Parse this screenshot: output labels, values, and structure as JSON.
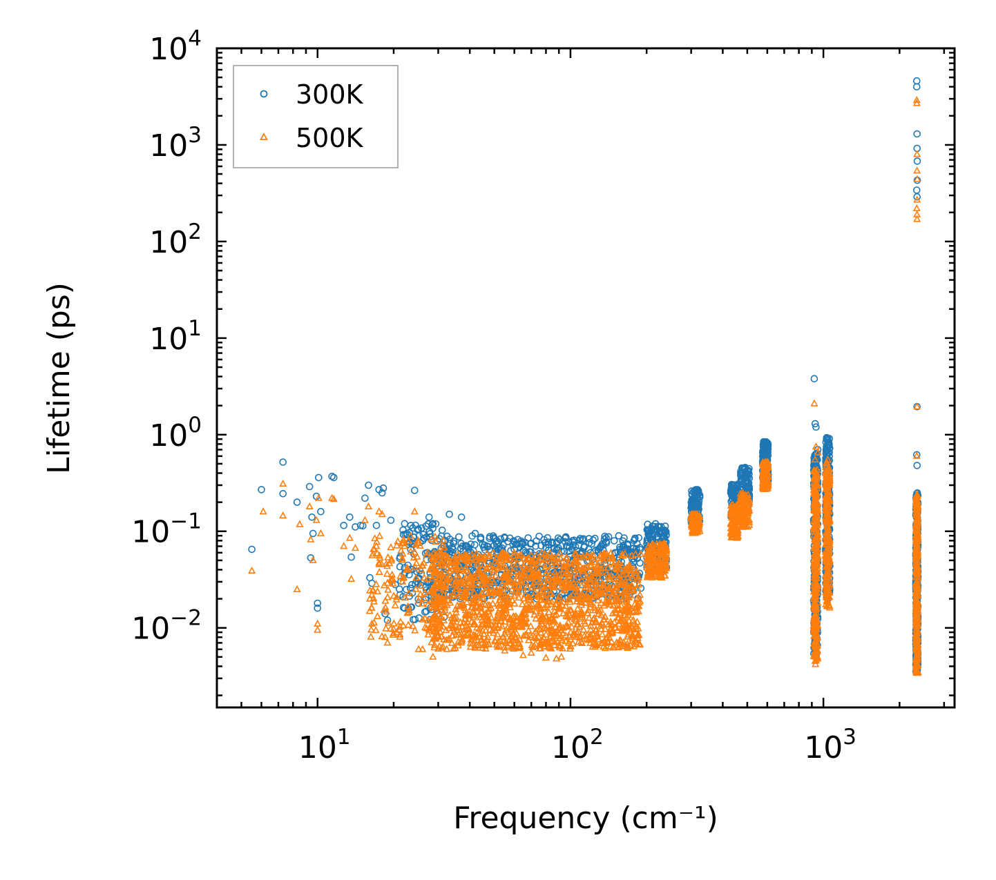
{
  "chart_data": {
    "type": "scatter",
    "title": "",
    "xlabel": "Frequency (cm⁻¹)",
    "ylabel": "Lifetime (ps)",
    "xscale": "log",
    "yscale": "log",
    "xlim": [
      4,
      3300
    ],
    "ylim": [
      0.0015,
      10000
    ],
    "x_ticks": [
      {
        "value": 10,
        "label": "10",
        "exp": "1"
      },
      {
        "value": 100,
        "label": "10",
        "exp": "2"
      },
      {
        "value": 1000,
        "label": "10",
        "exp": "3"
      }
    ],
    "y_ticks": [
      {
        "value": 0.01,
        "label": "10",
        "exp": "−2"
      },
      {
        "value": 0.1,
        "label": "10",
        "exp": "−1"
      },
      {
        "value": 1,
        "label": "10",
        "exp": "0"
      },
      {
        "value": 10,
        "label": "10",
        "exp": "1"
      },
      {
        "value": 100,
        "label": "10",
        "exp": "2"
      },
      {
        "value": 1000,
        "label": "10",
        "exp": "3"
      },
      {
        "value": 10000,
        "label": "10",
        "exp": "4"
      }
    ],
    "grid": false,
    "legend_position": "top-left",
    "colors": {
      "300K": "#1f77b4",
      "500K": "#ff7f0e"
    },
    "series": [
      {
        "name": "300K",
        "marker": "circle",
        "color": "#1f77b4",
        "points": [
          [
            5.5,
            0.065
          ],
          [
            6.0,
            0.27
          ],
          [
            7.3,
            0.52
          ],
          [
            7.3,
            0.245
          ],
          [
            8.3,
            0.2
          ],
          [
            9.3,
            0.29
          ],
          [
            9.5,
            0.14
          ],
          [
            9.4,
            0.053
          ],
          [
            9.6,
            0.095
          ],
          [
            9.9,
            0.23
          ],
          [
            10.1,
            0.36
          ],
          [
            10.3,
            0.16
          ],
          [
            10.0,
            0.018
          ],
          [
            10.0,
            0.016
          ],
          [
            11.4,
            0.37
          ],
          [
            11.6,
            0.36
          ],
          [
            12.7,
            0.115
          ],
          [
            13.4,
            0.14
          ],
          [
            13.6,
            0.054
          ],
          [
            14.1,
            0.111
          ],
          [
            14.8,
            0.115
          ],
          [
            15.1,
            0.114
          ],
          [
            15.4,
            0.22
          ],
          [
            15.9,
            0.3
          ],
          [
            16.1,
            0.033
          ],
          [
            16.4,
            0.029
          ],
          [
            17.1,
            0.115
          ],
          [
            17.5,
            0.27
          ],
          [
            18.0,
            0.25
          ],
          [
            18.2,
            0.28
          ],
          [
            18.5,
            0.014
          ],
          [
            18.9,
            0.012
          ],
          [
            19.5,
            0.13
          ],
          [
            20.3,
            0.028
          ],
          [
            21.2,
            0.022
          ],
          [
            22.1,
            0.12
          ],
          [
            23.4,
            0.115
          ],
          [
            24.2,
            0.265
          ],
          [
            25.1,
            0.018
          ],
          [
            27.6,
            0.14
          ],
          [
            28.6,
            0.12
          ],
          [
            30.0,
            0.014
          ],
          [
            33.2,
            0.15
          ],
          [
            37.1,
            0.14
          ],
          [
            42.0,
            0.095
          ],
          [
            48.0,
            0.088
          ],
          [
            55.0,
            0.085
          ],
          [
            62.0,
            0.082
          ],
          [
            70.0,
            0.075
          ],
          [
            80.0,
            0.068
          ],
          [
            92.0,
            0.062
          ],
          [
            105.0,
            0.058
          ],
          [
            120.0,
            0.06
          ],
          [
            135.0,
            0.072
          ],
          [
            150.0,
            0.06
          ],
          [
            170.0,
            0.058
          ],
          [
            185.0,
            0.06
          ],
          [
            920,
            3.8
          ],
          [
            928,
            1.3
          ],
          [
            935,
            1.2
          ],
          [
            950,
            0.7
          ],
          [
            1030,
            0.93
          ],
          [
            1040,
            0.88
          ],
          [
            1055,
            0.6
          ],
          [
            2340,
            4600
          ],
          [
            2340,
            4000
          ],
          [
            2345,
            1300
          ],
          [
            2345,
            920
          ],
          [
            2350,
            680
          ],
          [
            2350,
            430
          ],
          [
            2340,
            340
          ],
          [
            2345,
            290
          ],
          [
            2345,
            1.95
          ],
          [
            2340,
            0.62
          ],
          [
            2345,
            0.48
          ]
        ],
        "bands": [
          {
            "x": [
              21,
              32
            ],
            "y": [
              0.012,
              0.12
            ],
            "count": 130
          },
          {
            "x": [
              30,
              190
            ],
            "y": [
              0.02,
              0.09
            ],
            "count": 700
          },
          {
            "x": [
              200,
              240
            ],
            "y": [
              0.038,
              0.12
            ],
            "count": 150
          },
          {
            "x": [
              300,
              325
            ],
            "y": [
              0.12,
              0.27
            ],
            "count": 110
          },
          {
            "x": [
              430,
              460
            ],
            "y": [
              0.14,
              0.31
            ],
            "count": 90
          },
          {
            "x": [
              470,
              510
            ],
            "y": [
              0.16,
              0.46
            ],
            "count": 110
          },
          {
            "x": [
              575,
              605
            ],
            "y": [
              0.33,
              0.85
            ],
            "count": 170
          },
          {
            "x": [
              915,
              950
            ],
            "y": [
              0.005,
              0.65
            ],
            "count": 260
          },
          {
            "x": [
              1020,
              1060
            ],
            "y": [
              0.02,
              0.93
            ],
            "count": 220
          },
          {
            "x": [
              2320,
              2365
            ],
            "y": [
              0.0035,
              0.25
            ],
            "count": 300
          }
        ]
      },
      {
        "name": "500K",
        "marker": "triangle",
        "color": "#ff7f0e",
        "points": [
          [
            5.5,
            0.039
          ],
          [
            6.1,
            0.16
          ],
          [
            7.3,
            0.31
          ],
          [
            7.3,
            0.145
          ],
          [
            8.3,
            0.025
          ],
          [
            8.5,
            0.118
          ],
          [
            9.3,
            0.18
          ],
          [
            9.4,
            0.082
          ],
          [
            9.6,
            0.05
          ],
          [
            9.9,
            0.13
          ],
          [
            10.1,
            0.22
          ],
          [
            10.3,
            0.095
          ],
          [
            10.0,
            0.011
          ],
          [
            10.0,
            0.0095
          ],
          [
            11.4,
            0.22
          ],
          [
            11.6,
            0.215
          ],
          [
            12.7,
            0.07
          ],
          [
            13.4,
            0.085
          ],
          [
            13.6,
            0.032
          ],
          [
            14.1,
            0.067
          ],
          [
            15.4,
            0.13
          ],
          [
            15.9,
            0.18
          ],
          [
            16.1,
            0.02
          ],
          [
            16.4,
            0.011
          ],
          [
            17.1,
            0.07
          ],
          [
            17.5,
            0.16
          ],
          [
            18.0,
            0.15
          ],
          [
            18.5,
            0.008
          ],
          [
            18.9,
            0.007
          ],
          [
            19.5,
            0.068
          ],
          [
            20.3,
            0.017
          ],
          [
            21.2,
            0.0085
          ],
          [
            22.1,
            0.07
          ],
          [
            24.2,
            0.16
          ],
          [
            25.1,
            0.006
          ],
          [
            26.0,
            0.006
          ],
          [
            28.6,
            0.005
          ],
          [
            31.0,
            0.0062
          ],
          [
            42.0,
            0.0062
          ],
          [
            55.0,
            0.0058
          ],
          [
            65.0,
            0.0052
          ],
          [
            70.0,
            0.0055
          ],
          [
            80.0,
            0.0049
          ],
          [
            88.0,
            0.0048
          ],
          [
            92.0,
            0.005
          ],
          [
            100.0,
            0.0065
          ],
          [
            120.0,
            0.0085
          ],
          [
            150.0,
            0.01
          ],
          [
            920,
            2.1
          ],
          [
            928,
            0.55
          ],
          [
            935,
            0.75
          ],
          [
            950,
            0.65
          ],
          [
            930,
            0.0042
          ],
          [
            1040,
            0.55
          ],
          [
            1055,
            0.44
          ],
          [
            2340,
            2900
          ],
          [
            2340,
            2700
          ],
          [
            2345,
            800
          ],
          [
            2345,
            540
          ],
          [
            2350,
            440
          ],
          [
            2345,
            270
          ],
          [
            2340,
            220
          ],
          [
            2345,
            190
          ],
          [
            2345,
            170
          ],
          [
            2345,
            1.95
          ],
          [
            2340,
            0.6
          ],
          [
            2345,
            0.24
          ]
        ],
        "bands": [
          {
            "x": [
              16,
              32
            ],
            "y": [
              0.008,
              0.09
            ],
            "count": 170
          },
          {
            "x": [
              28,
              190
            ],
            "y": [
              0.006,
              0.06
            ],
            "count": 1400
          },
          {
            "x": [
              200,
              240
            ],
            "y": [
              0.033,
              0.075
            ],
            "count": 150
          },
          {
            "x": [
              300,
              325
            ],
            "y": [
              0.095,
              0.15
            ],
            "count": 110
          },
          {
            "x": [
              430,
              460
            ],
            "y": [
              0.085,
              0.19
            ],
            "count": 90
          },
          {
            "x": [
              470,
              510
            ],
            "y": [
              0.11,
              0.25
            ],
            "count": 110
          },
          {
            "x": [
              575,
              605
            ],
            "y": [
              0.27,
              0.52
            ],
            "count": 170
          },
          {
            "x": [
              915,
              950
            ],
            "y": [
              0.0045,
              0.45
            ],
            "count": 260
          },
          {
            "x": [
              1020,
              1060
            ],
            "y": [
              0.016,
              0.55
            ],
            "count": 220
          },
          {
            "x": [
              2320,
              2365
            ],
            "y": [
              0.0034,
              0.24
            ],
            "count": 300
          }
        ]
      }
    ]
  }
}
